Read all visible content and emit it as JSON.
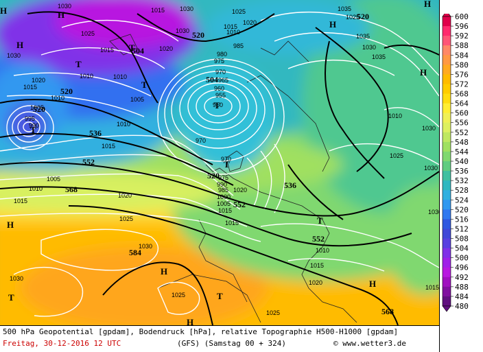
{
  "caption": {
    "line1": "500 hPa Geopotential [gpdam], Bodendruck [hPa], relative Topographie H500-H1000 [gpdam]",
    "date": "Freitag, 30-12-2016  12 UTC",
    "model": "(GFS)  (Samstag 00 + 324)",
    "credit": "© www.wetter3.de"
  },
  "legend": {
    "labels": [
      "600",
      "596",
      "592",
      "588",
      "584",
      "580",
      "576",
      "572",
      "568",
      "564",
      "560",
      "556",
      "552",
      "548",
      "544",
      "540",
      "536",
      "532",
      "528",
      "524",
      "520",
      "516",
      "512",
      "508",
      "504",
      "500",
      "496",
      "492",
      "488",
      "484",
      "480"
    ],
    "colors": [
      "#e0004b",
      "#ff2a6e",
      "#ff5577",
      "#ff8866",
      "#ff9944",
      "#ffaa22",
      "#ffbb00",
      "#ffcc00",
      "#ffdd10",
      "#ffee33",
      "#f0f055",
      "#ddf060",
      "#bfe860",
      "#a0e060",
      "#80d870",
      "#60cc80",
      "#40c0a0",
      "#30b8c0",
      "#30b0e0",
      "#3098f0",
      "#3078f0",
      "#3058e0",
      "#4048d8",
      "#5840e0",
      "#8030e8",
      "#a020e8",
      "#b818e0",
      "#a010c0",
      "#8010a0",
      "#601080"
    ]
  },
  "geopotential_labels": [
    "520",
    "504",
    "520",
    "520",
    "536",
    "552",
    "568",
    "584",
    "520",
    "536",
    "552",
    "552",
    "568"
  ],
  "pressure_labels": [
    "1030",
    "1025",
    "1030",
    "1025",
    "1020",
    "1015",
    "1010",
    "1030",
    "1020",
    "1015",
    "1010",
    "1035",
    "1035",
    "1030",
    "1035",
    "1030",
    "1025",
    "1030",
    "1030",
    "1025",
    "1015",
    "1010",
    "1005",
    "1010",
    "1015",
    "1020",
    "1025",
    "1030",
    "1015",
    "1020",
    "1030",
    "1025",
    "1015",
    "1010",
    "1015",
    "1020",
    "1005",
    "1010",
    "1015",
    "1010",
    "995",
    "990",
    "985",
    "980",
    "975",
    "970",
    "965",
    "960",
    "955",
    "950",
    "1005",
    "970",
    "970",
    "975",
    "990",
    "985",
    "1000",
    "1005",
    "1015",
    "1020",
    "1030",
    "1025",
    "1010",
    "1015"
  ],
  "hl_labels": [
    "H",
    "H",
    "H",
    "T",
    "T",
    "H",
    "T",
    "T",
    "T",
    "H",
    "H",
    "H",
    "T",
    "H",
    "T",
    "T",
    "H",
    "T",
    "H"
  ]
}
